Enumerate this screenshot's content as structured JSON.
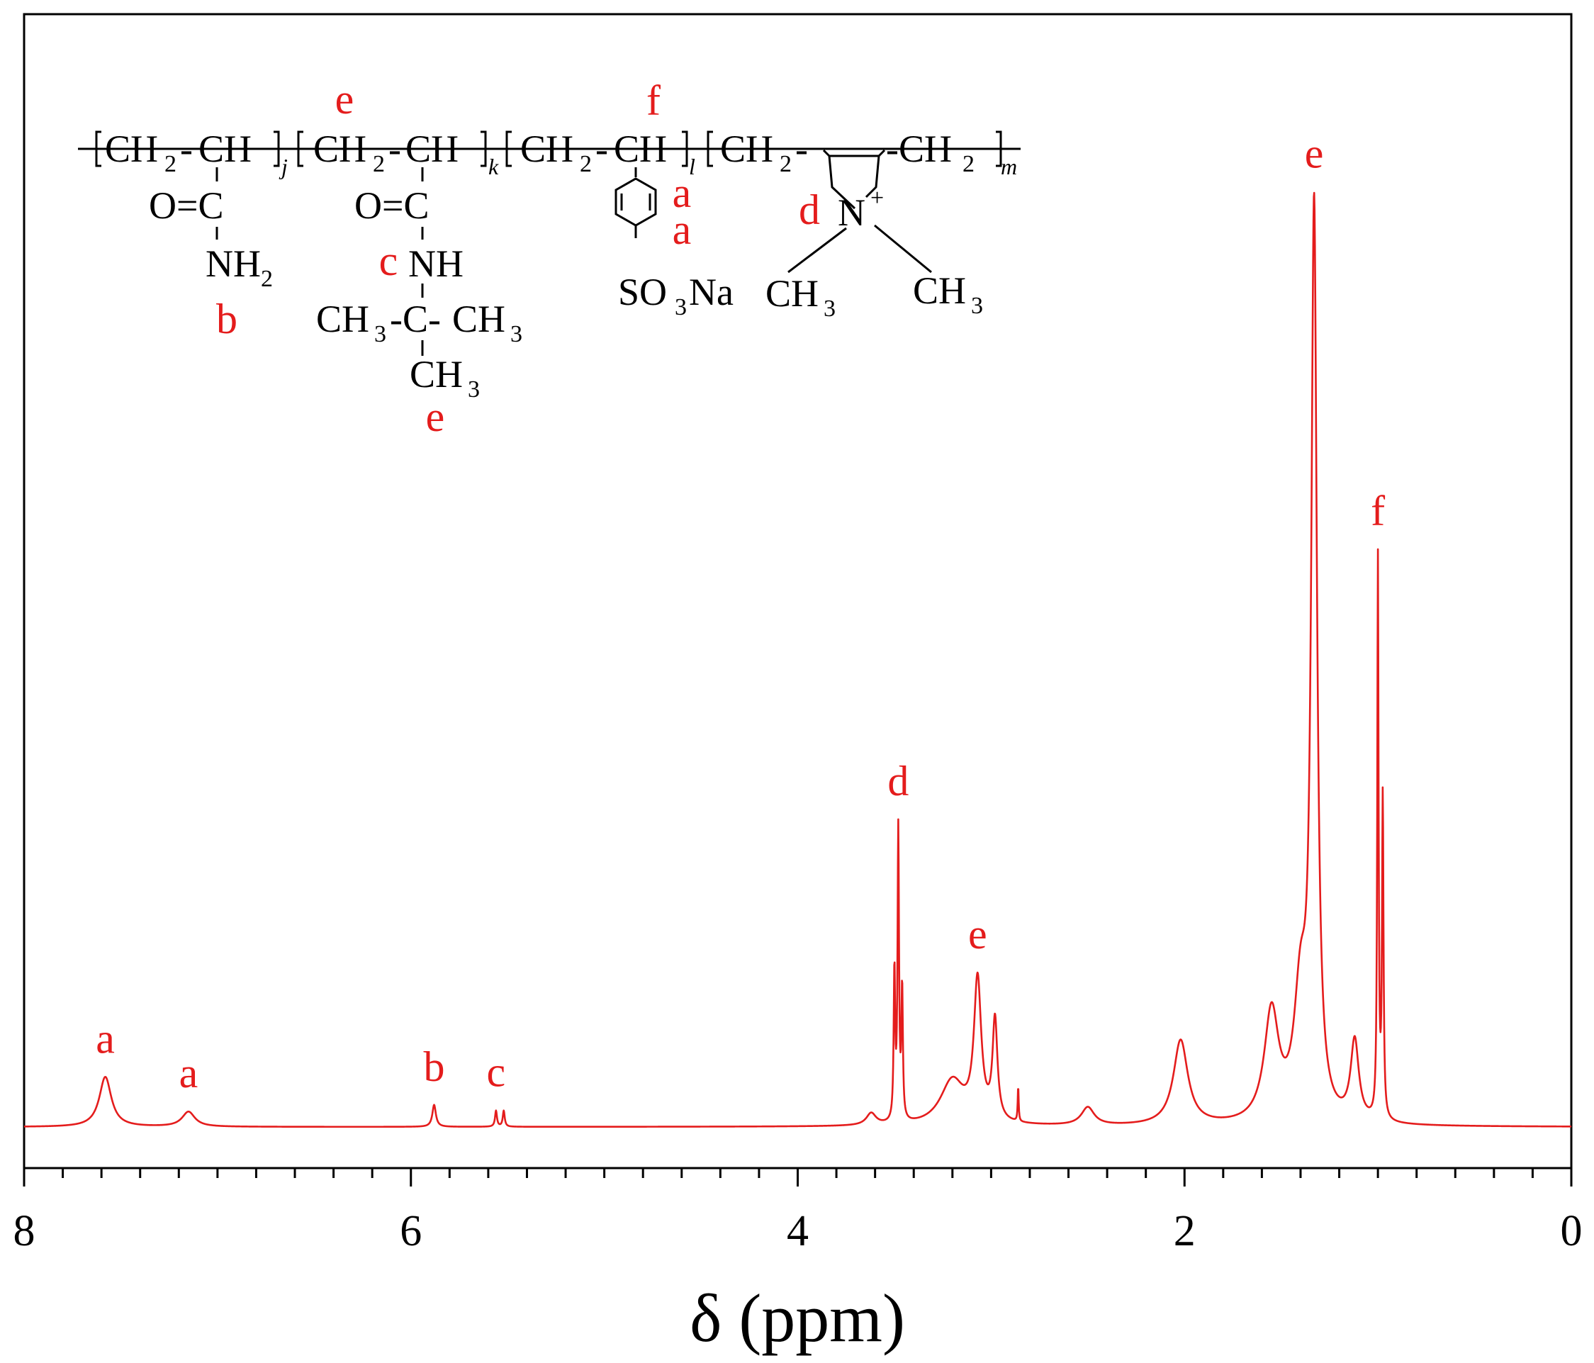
{
  "chart_data": {
    "type": "line",
    "title": "",
    "xlabel": "δ (ppm)",
    "ylabel": "",
    "xlim": [
      8,
      0
    ],
    "x_ticks": [
      "8",
      "6",
      "4",
      "2",
      "0"
    ],
    "series_color": "#e41c1c",
    "grid": false,
    "peaks": [
      {
        "x": 7.58,
        "height": 0.05,
        "width": 0.075,
        "label": "a"
      },
      {
        "x": 7.15,
        "height": 0.015,
        "width": 0.08,
        "label": "a"
      },
      {
        "x": 5.88,
        "height": 0.022,
        "width": 0.022,
        "label": "b"
      },
      {
        "x": 5.56,
        "height": 0.016,
        "width": 0.012,
        "label": "c"
      },
      {
        "x": 5.52,
        "height": 0.016,
        "width": 0.012,
        "label": ""
      },
      {
        "x": 3.62,
        "height": 0.012,
        "width": 0.06,
        "label": ""
      },
      {
        "x": 3.5,
        "height": 0.15,
        "width": 0.009,
        "label": ""
      },
      {
        "x": 3.48,
        "height": 0.29,
        "width": 0.009,
        "label": "d"
      },
      {
        "x": 3.46,
        "height": 0.13,
        "width": 0.009,
        "label": ""
      },
      {
        "x": 3.07,
        "height": 0.14,
        "width": 0.045,
        "label": "e"
      },
      {
        "x": 2.98,
        "height": 0.1,
        "width": 0.03,
        "label": ""
      },
      {
        "x": 3.2,
        "height": 0.045,
        "width": 0.15,
        "label": ""
      },
      {
        "x": 2.86,
        "height": 0.035,
        "width": 0.006,
        "label": ""
      },
      {
        "x": 2.5,
        "height": 0.018,
        "width": 0.08,
        "label": ""
      },
      {
        "x": 2.02,
        "height": 0.085,
        "width": 0.09,
        "label": ""
      },
      {
        "x": 1.55,
        "height": 0.11,
        "width": 0.09,
        "label": ""
      },
      {
        "x": 1.33,
        "height": 0.9,
        "width": 0.035,
        "label": "e"
      },
      {
        "x": 1.4,
        "height": 0.12,
        "width": 0.08,
        "label": ""
      },
      {
        "x": 1.12,
        "height": 0.08,
        "width": 0.05,
        "label": ""
      },
      {
        "x": 1.0,
        "height": 0.56,
        "width": 0.008,
        "label": "f"
      },
      {
        "x": 0.975,
        "height": 0.32,
        "width": 0.009,
        "label": ""
      }
    ],
    "structure": {
      "segments": [
        {
          "unit": "CH",
          "sub": "2",
          "link": "-",
          "unit2": "CH",
          "subscript": "j"
        },
        {
          "unit": "CH",
          "sub": "2",
          "link": "-",
          "unit2": "CH",
          "subscript": "k"
        },
        {
          "unit": "CH",
          "sub": "2",
          "link": "-",
          "unit2": "CH",
          "subscript": "l"
        },
        {
          "unit": "CH",
          "sub": "2",
          "link": "-",
          "unit2": "-CH",
          "subscript": "m"
        }
      ],
      "o_c": "O=C",
      "nh": "NH",
      "nh2_sub": "2",
      "so3": "SO",
      "so3_sub": "3",
      "na": "Na",
      "n_plus": "N",
      "plus": "+",
      "ch": "CH",
      "ch3_sub": "3",
      "c_mid": "-C-",
      "labels": {
        "a": "a",
        "b": "b",
        "c": "c",
        "d": "d",
        "e": "e",
        "f": "f"
      }
    }
  }
}
